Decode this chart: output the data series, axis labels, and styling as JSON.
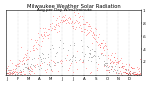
{
  "title": "Milwaukee Weather Solar Radiation",
  "subtitle": "Avg per Day W/m2/minute",
  "title_fontsize": 3.8,
  "subtitle_fontsize": 3.0,
  "bg_color": "#ffffff",
  "plot_bg_color": "#ffffff",
  "red_color": "#ff0000",
  "black_color": "#000000",
  "grid_color": "#bbbbbb",
  "ylim": [
    0,
    1.0
  ],
  "xlim": [
    0,
    365
  ],
  "ytick_fontsize": 2.8,
  "xtick_fontsize": 2.8,
  "ytick_values": [
    0.2,
    0.4,
    0.6,
    0.8,
    1.0
  ],
  "ytick_labels": [
    ".2",
    ".4",
    ".6",
    ".8",
    "1"
  ],
  "month_starts": [
    0,
    31,
    59,
    90,
    120,
    151,
    181,
    212,
    243,
    273,
    304,
    334
  ],
  "month_tick_labels": [
    "J",
    "F",
    "M",
    "A",
    "M",
    "J",
    "J",
    "A",
    "S",
    "O",
    "N",
    "D"
  ],
  "seed": 17
}
